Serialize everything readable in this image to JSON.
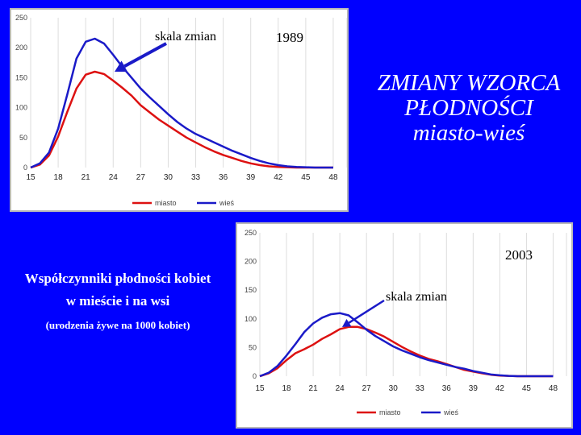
{
  "title": {
    "line1": "ZMIANY WZORCA",
    "line2": "PŁODNOŚCI",
    "line3": "miasto-wieś"
  },
  "left_text": {
    "line1": "Współczynniki płodności kobiet",
    "line2": "w mieście i na wsi",
    "line3": "(urodzenia żywe na 1000 kobiet)"
  },
  "colors": {
    "background": "#0000FF",
    "miasto": "#DD1111",
    "wies": "#1A1AC8"
  },
  "chart_data": [
    {
      "type": "line",
      "year_label": "1989",
      "annotation": "skala zmian",
      "x": [
        15,
        16,
        17,
        18,
        19,
        20,
        21,
        22,
        23,
        24,
        25,
        26,
        27,
        28,
        29,
        30,
        31,
        32,
        33,
        34,
        35,
        36,
        37,
        38,
        39,
        40,
        41,
        42,
        43,
        44,
        45,
        46,
        47,
        48
      ],
      "xticks": [
        15,
        18,
        21,
        24,
        27,
        30,
        33,
        36,
        39,
        42,
        45,
        48
      ],
      "yticks": [
        0,
        50,
        100,
        150,
        200,
        250
      ],
      "xlim": [
        15,
        49.5
      ],
      "ylim": [
        0,
        250
      ],
      "legend_position": "bottom",
      "series": [
        {
          "name": "miasto",
          "values": [
            0,
            5,
            20,
            52,
            93,
            132,
            155,
            160,
            156,
            145,
            133,
            120,
            104,
            92,
            80,
            70,
            60,
            50,
            42,
            34,
            27,
            21,
            16,
            11,
            7,
            4,
            2,
            1,
            0.5,
            0,
            0,
            0,
            0,
            0
          ]
        },
        {
          "name": "wieś",
          "values": [
            0,
            7,
            25,
            65,
            122,
            182,
            210,
            215,
            207,
            188,
            168,
            150,
            132,
            117,
            103,
            89,
            76,
            65,
            56,
            49,
            42,
            35,
            28,
            22,
            16,
            11,
            7,
            4,
            2,
            1,
            0.5,
            0,
            0,
            0
          ]
        }
      ]
    },
    {
      "type": "line",
      "year_label": "2003",
      "annotation": "skala zmian",
      "x": [
        15,
        16,
        17,
        18,
        19,
        20,
        21,
        22,
        23,
        24,
        25,
        26,
        27,
        28,
        29,
        30,
        31,
        32,
        33,
        34,
        35,
        36,
        37,
        38,
        39,
        40,
        41,
        42,
        43,
        44,
        45,
        46,
        47,
        48
      ],
      "xticks": [
        15,
        18,
        21,
        24,
        27,
        30,
        33,
        36,
        39,
        42,
        45,
        48
      ],
      "yticks": [
        0,
        50,
        100,
        150,
        200,
        250
      ],
      "xlim": [
        15,
        49.5
      ],
      "ylim": [
        0,
        250
      ],
      "legend_position": "bottom",
      "series": [
        {
          "name": "miasto",
          "values": [
            0,
            5,
            14,
            28,
            40,
            47,
            55,
            65,
            73,
            82,
            86,
            86,
            82,
            76,
            69,
            60,
            51,
            43,
            36,
            30,
            26,
            21,
            16,
            11,
            8,
            5,
            2.5,
            1,
            0.5,
            0,
            0,
            0,
            0,
            0
          ]
        },
        {
          "name": "wieś",
          "values": [
            0,
            6,
            18,
            36,
            56,
            77,
            92,
            102,
            108,
            110,
            106,
            94,
            81,
            70,
            61,
            52,
            45,
            39,
            33,
            28,
            24,
            20,
            16,
            13,
            9,
            6,
            3,
            1.5,
            0.5,
            0,
            0,
            0,
            0,
            0
          ]
        }
      ]
    }
  ]
}
